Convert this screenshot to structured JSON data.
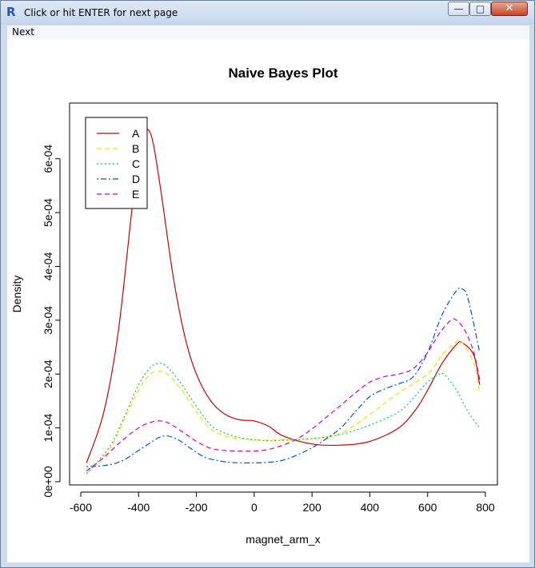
{
  "window": {
    "title": "Click or hit ENTER for next page",
    "app_icon": "R-logo-icon",
    "controls": {
      "minimize": "minimize-icon",
      "maximize": "maximize-icon",
      "close": "close-icon"
    }
  },
  "menu": {
    "next_label": "Next"
  },
  "chart_data": {
    "type": "line",
    "title": "Naive Bayes Plot",
    "xlabel": "magnet_arm_x",
    "ylabel": "Density",
    "xlim": [
      -600,
      800
    ],
    "ylim": [
      0,
      0.00065
    ],
    "xticks": [
      -600,
      -400,
      -200,
      0,
      200,
      400,
      600,
      800
    ],
    "xtick_labels": [
      "-600",
      "-400",
      "-200",
      "0",
      "200",
      "400",
      "600",
      "800"
    ],
    "yticks": [
      0,
      0.0001,
      0.0002,
      0.0003,
      0.0004,
      0.0005,
      0.0006
    ],
    "ytick_labels": [
      "0e+00",
      "1e-04",
      "2e-04",
      "3e-04",
      "4e-04",
      "5e-04",
      "6e-04"
    ],
    "grid": false,
    "legend_position": "top-left",
    "series": [
      {
        "name": "A",
        "color": "#cc0000",
        "dash": "solid",
        "x": [
          -580,
          -520,
          -470,
          -420,
          -390,
          -370,
          -350,
          -320,
          -280,
          -240,
          -200,
          -150,
          -100,
          -50,
          0,
          50,
          100,
          200,
          300,
          400,
          500,
          560,
          600,
          650,
          700,
          720,
          760,
          780
        ],
        "y": [
          3.5e-05,
          0.00013,
          0.00028,
          0.00052,
          0.00064,
          0.000655,
          0.00063,
          0.00053,
          0.00038,
          0.00027,
          0.0002,
          0.00015,
          0.000125,
          0.000115,
          0.000113,
          0.000103,
          8.5e-05,
          7e-05,
          6.8e-05,
          7.5e-05,
          0.0001,
          0.000135,
          0.00017,
          0.00022,
          0.000255,
          0.000258,
          0.000235,
          0.00018
        ]
      },
      {
        "name": "B",
        "color": "#e6e600",
        "dash": "long",
        "x": [
          -580,
          -500,
          -450,
          -400,
          -360,
          -330,
          -300,
          -250,
          -200,
          -150,
          -100,
          -50,
          0,
          50,
          100,
          200,
          300,
          400,
          500,
          600,
          650,
          700,
          720,
          760,
          780
        ],
        "y": [
          1.5e-05,
          6e-05,
          0.000115,
          0.00017,
          0.0002,
          0.000205,
          0.0002,
          0.00017,
          0.00013,
          9.8e-05,
          8.5e-05,
          8e-05,
          7.8e-05,
          7.7e-05,
          7.8e-05,
          8e-05,
          9e-05,
          0.000125,
          0.000165,
          0.0002,
          0.000235,
          0.00026,
          0.000258,
          0.00022,
          0.000165
        ]
      },
      {
        "name": "C",
        "color": "#00cc66",
        "dash": "dotted",
        "x": [
          -580,
          -500,
          -450,
          -400,
          -360,
          -330,
          -300,
          -250,
          -200,
          -150,
          -100,
          -50,
          0,
          50,
          100,
          200,
          300,
          400,
          500,
          550,
          600,
          640,
          660,
          700,
          740,
          780
        ],
        "y": [
          1.5e-05,
          6.5e-05,
          0.00012,
          0.00018,
          0.000212,
          0.00022,
          0.000213,
          0.00018,
          0.00014,
          0.000105,
          9e-05,
          8.2e-05,
          7.8e-05,
          7.6e-05,
          7.7e-05,
          8e-05,
          8.8e-05,
          0.000105,
          0.00013,
          0.000155,
          0.000185,
          0.0002,
          0.000198,
          0.00017,
          0.00013,
          0.0001
        ]
      },
      {
        "name": "D",
        "color": "#0055cc",
        "dash": "dotdash",
        "x": [
          -580,
          -520,
          -460,
          -400,
          -360,
          -330,
          -300,
          -260,
          -220,
          -180,
          -150,
          -100,
          -50,
          0,
          50,
          100,
          150,
          200,
          250,
          300,
          350,
          400,
          450,
          500,
          550,
          600,
          650,
          700,
          720,
          740,
          780
        ],
        "y": [
          2.8e-05,
          3e-05,
          3.8e-05,
          5.8e-05,
          7.2e-05,
          8.2e-05,
          8.5e-05,
          7.7e-05,
          6.2e-05,
          4.8e-05,
          4.2e-05,
          3.7e-05,
          3.5e-05,
          3.5e-05,
          3.6e-05,
          4e-05,
          5e-05,
          6.3e-05,
          8e-05,
          0.0001,
          0.00013,
          0.000158,
          0.000172,
          0.000182,
          0.000195,
          0.00024,
          0.00031,
          0.000355,
          0.000358,
          0.00034,
          0.00024
        ]
      },
      {
        "name": "E",
        "color": "#cc00cc",
        "dash": "long",
        "x": [
          -580,
          -520,
          -460,
          -400,
          -360,
          -330,
          -300,
          -260,
          -200,
          -150,
          -100,
          -50,
          0,
          50,
          100,
          150,
          200,
          250,
          300,
          350,
          400,
          450,
          500,
          550,
          600,
          640,
          680,
          700,
          730,
          760,
          780
        ],
        "y": [
          2e-05,
          4.5e-05,
          7.5e-05,
          0.0001,
          0.00011,
          0.000113,
          0.00011,
          9.7e-05,
          7.5e-05,
          6.2e-05,
          5.8e-05,
          5.7e-05,
          5.7e-05,
          6e-05,
          6.8e-05,
          8e-05,
          9.8e-05,
          0.00012,
          0.000142,
          0.000165,
          0.000185,
          0.000195,
          0.0002,
          0.00021,
          0.00024,
          0.000275,
          0.0003,
          0.0003,
          0.00028,
          0.00024,
          0.00019
        ]
      }
    ]
  }
}
